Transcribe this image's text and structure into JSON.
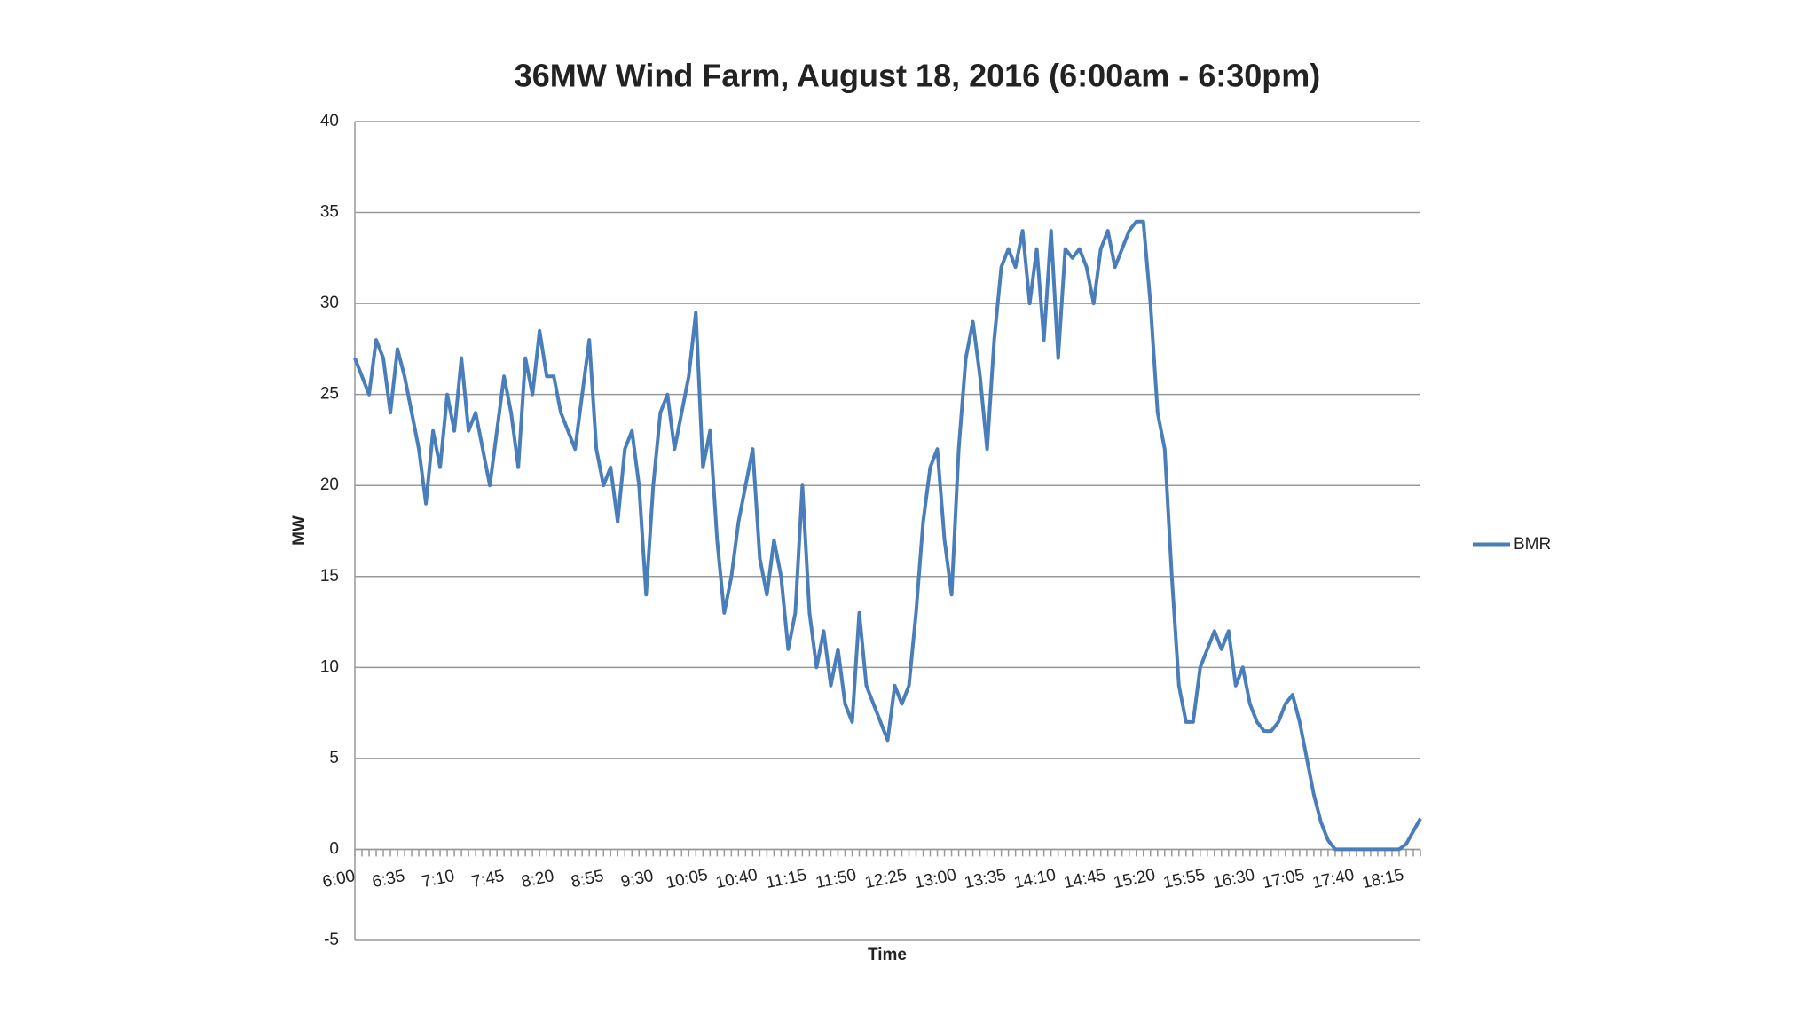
{
  "chart_data": {
    "type": "line",
    "title": "36MW Wind Farm, August 18, 2016 (6:00am - 6:30pm)",
    "x_label": "Time",
    "y_label": "MW",
    "categories": [
      "6:00",
      null,
      null,
      null,
      null,
      null,
      null,
      "6:35",
      null,
      null,
      null,
      null,
      null,
      null,
      "7:10",
      null,
      null,
      null,
      null,
      null,
      null,
      "7:45",
      null,
      null,
      null,
      null,
      null,
      null,
      "8:20",
      null,
      null,
      null,
      null,
      null,
      null,
      "8:55",
      null,
      null,
      null,
      null,
      null,
      null,
      "9:30",
      null,
      null,
      null,
      null,
      null,
      null,
      "10:05",
      null,
      null,
      null,
      null,
      null,
      null,
      "10:40",
      null,
      null,
      null,
      null,
      null,
      null,
      "11:15",
      null,
      null,
      null,
      null,
      null,
      null,
      "11:50",
      null,
      null,
      null,
      null,
      null,
      null,
      "12:25",
      null,
      null,
      null,
      null,
      null,
      null,
      "13:00",
      null,
      null,
      null,
      null,
      null,
      null,
      "13:35",
      null,
      null,
      null,
      null,
      null,
      null,
      "14:10",
      null,
      null,
      null,
      null,
      null,
      null,
      "14:45",
      null,
      null,
      null,
      null,
      null,
      null,
      "15:20",
      null,
      null,
      null,
      null,
      null,
      null,
      "15:55",
      null,
      null,
      null,
      null,
      null,
      null,
      "16:30",
      null,
      null,
      null,
      null,
      null,
      null,
      "17:05",
      null,
      null,
      null,
      null,
      null,
      null,
      "17:40",
      null,
      null,
      null,
      null,
      null,
      null,
      "18:15",
      null,
      null,
      null
    ],
    "series": [
      {
        "name": "BMR",
        "color": "#4a7ebb",
        "values": [
          27,
          26,
          25,
          28,
          27,
          24,
          27.5,
          26,
          24,
          22,
          19,
          23,
          21,
          25,
          23,
          27,
          23,
          24,
          22,
          20,
          23,
          26,
          24,
          21,
          27,
          25,
          28.5,
          26,
          26,
          24,
          23,
          22,
          25,
          28,
          22,
          20,
          21,
          18,
          22,
          23,
          20,
          14,
          20,
          24,
          25,
          22,
          24,
          26,
          29.5,
          21,
          23,
          17,
          13,
          15,
          18,
          20,
          22,
          16,
          14,
          17,
          15,
          11,
          13,
          20,
          13,
          10,
          12,
          9,
          11,
          8,
          7,
          13,
          9,
          8,
          7,
          6,
          9,
          8,
          9,
          13,
          18,
          21,
          22,
          17,
          14,
          22,
          27,
          29,
          26,
          22,
          28,
          32,
          33,
          32,
          34,
          30,
          33,
          28,
          34,
          27,
          33,
          32.5,
          33,
          32,
          30,
          33,
          34,
          32,
          33,
          34,
          34.5,
          34.5,
          30,
          24,
          22,
          15,
          9,
          7,
          7,
          10,
          11,
          12,
          11,
          12,
          9,
          10,
          8,
          7,
          6.5,
          6.5,
          7,
          8,
          8.5,
          7,
          5,
          3,
          1.5,
          0.5,
          0,
          0,
          0,
          0,
          0,
          0,
          0,
          0,
          0,
          0,
          0.3,
          1,
          1.7
        ]
      }
    ],
    "ylim": [
      -5,
      40
    ],
    "yticks": [
      -5,
      0,
      5,
      10,
      15,
      20,
      25,
      30,
      35,
      40
    ],
    "grid": true,
    "legend": "right"
  }
}
